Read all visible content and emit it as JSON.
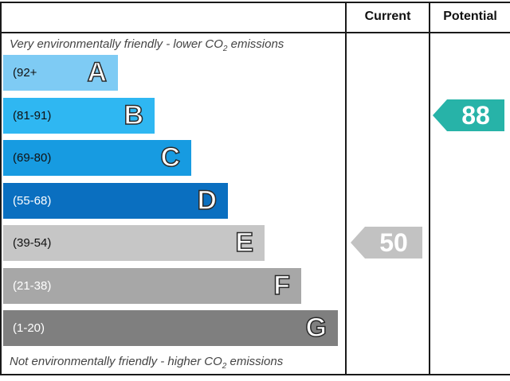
{
  "chart_data": {
    "type": "table",
    "columns": [
      "Current",
      "Potential"
    ],
    "top_caption_prefix": "Very environmentally friendly - lower CO",
    "top_caption_sub": "2",
    "top_caption_suffix": " emissions",
    "bottom_caption_prefix": "Not environmentally friendly - higher CO",
    "bottom_caption_sub": "2",
    "bottom_caption_suffix": " emissions",
    "bands": [
      {
        "letter": "A",
        "range": "(92+",
        "color": "#7ecbf4",
        "text_color": "#111111"
      },
      {
        "letter": "B",
        "range": "(81-91)",
        "color": "#2fb7f2",
        "text_color": "#111111"
      },
      {
        "letter": "C",
        "range": "(69-80)",
        "color": "#179be1",
        "text_color": "#111111"
      },
      {
        "letter": "D",
        "range": "(55-68)",
        "color": "#0a6fc0",
        "text_color": "#ffffff"
      },
      {
        "letter": "E",
        "range": "(39-54)",
        "color": "#c6c6c6",
        "text_color": "#111111"
      },
      {
        "letter": "F",
        "range": "(21-38)",
        "color": "#a7a7a7",
        "text_color": "#ffffff"
      },
      {
        "letter": "G",
        "range": "(1-20)",
        "color": "#7f7f7f",
        "text_color": "#ffffff"
      }
    ],
    "current": {
      "value": "50",
      "band": "E",
      "color": "#c2c2c2"
    },
    "potential": {
      "value": "88",
      "band": "B",
      "color": "#27b3a8"
    }
  }
}
